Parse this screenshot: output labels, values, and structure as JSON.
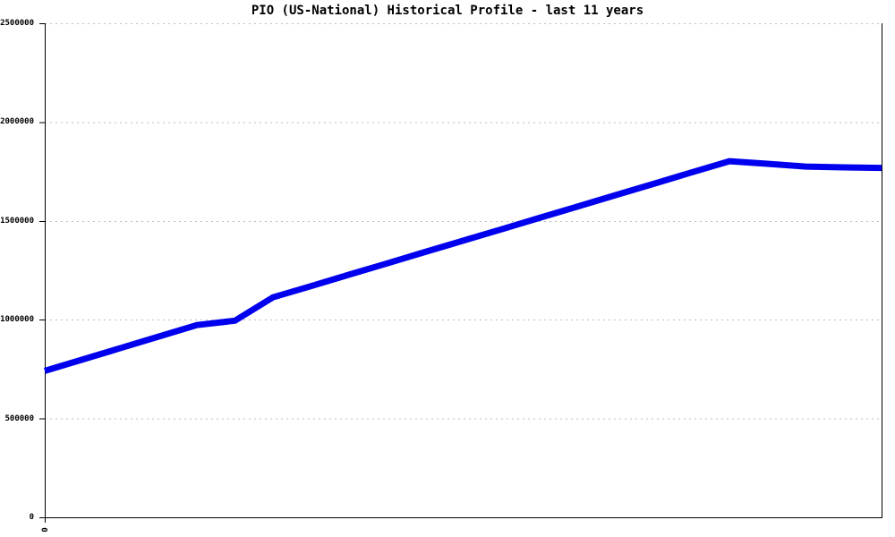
{
  "title": "PIO (US-National) Historical Profile - last 11 years",
  "colors": {
    "line": "#0000ee",
    "grid": "#bdbdbd",
    "axis": "#000000",
    "text": "#000000",
    "background": "#ffffff"
  },
  "chart_data": {
    "type": "line",
    "title": "PIO (US-National) Historical Profile - last 11 years",
    "xlabel": "",
    "ylabel": "",
    "ylim": [
      0,
      2500000
    ],
    "y_ticks": [
      0,
      500000,
      1000000,
      1500000,
      2000000,
      2500000
    ],
    "y_tick_labels": [
      "0",
      "500000",
      "1000000",
      "1500000",
      "2000000",
      "2500000"
    ],
    "x_tick_labels": [
      "0"
    ],
    "grid": "horizontal-dashed",
    "legend": "none",
    "series": [
      {
        "name": "PIO (US-National)",
        "color": "#0000ee",
        "x": [
          0,
          1,
          2,
          3,
          4,
          5,
          6,
          7,
          8,
          9,
          10,
          11,
          12,
          13,
          14,
          15,
          16,
          17,
          18,
          19,
          20,
          21,
          22
        ],
        "values": [
          741000,
          799000,
          857000,
          915000,
          973000,
          995000,
          1113000,
          1170000,
          1228000,
          1285000,
          1343000,
          1400000,
          1457000,
          1515000,
          1572000,
          1630000,
          1687000,
          1745000,
          1802000,
          1789000,
          1775000,
          1771000,
          1768000
        ]
      }
    ]
  }
}
